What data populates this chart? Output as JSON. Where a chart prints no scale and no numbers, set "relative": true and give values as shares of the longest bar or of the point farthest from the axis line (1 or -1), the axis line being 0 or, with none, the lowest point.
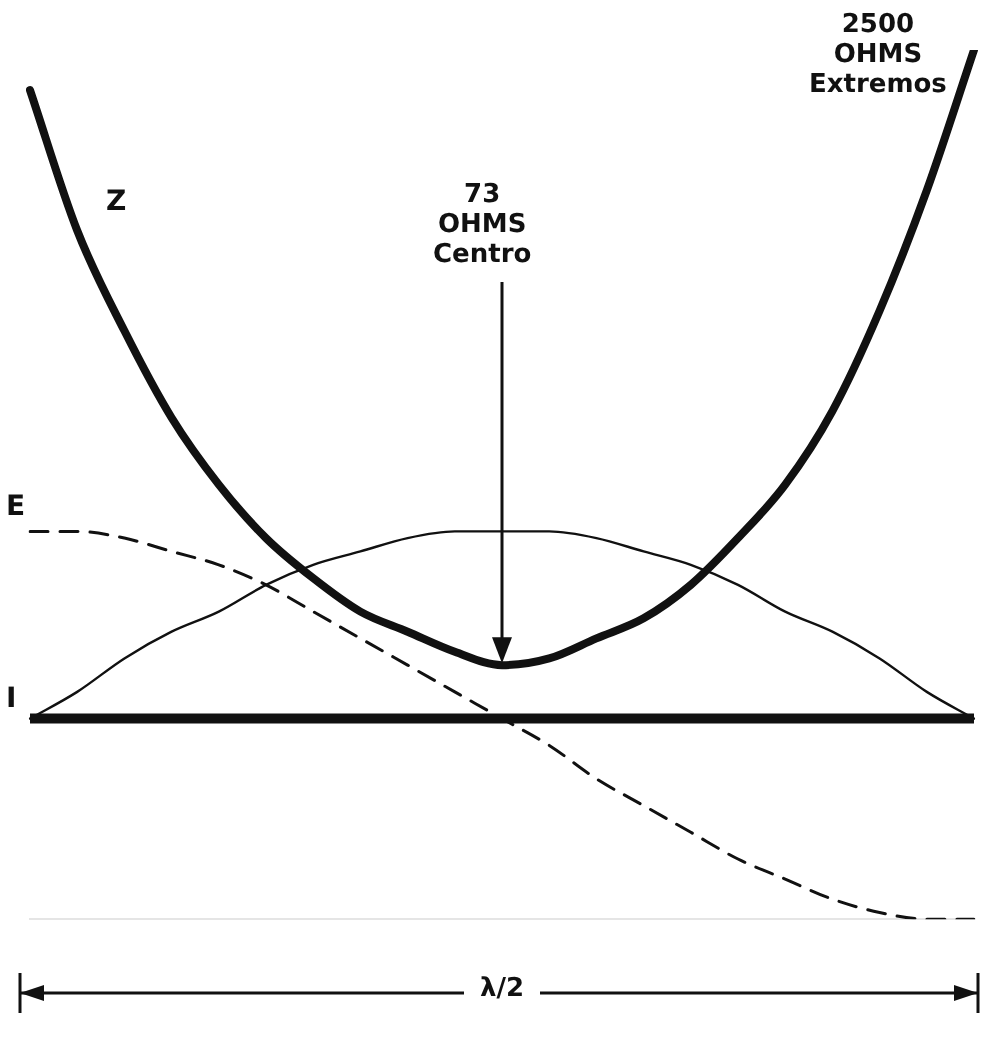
{
  "chart_data": {
    "type": "line",
    "relative": true,
    "legend": false,
    "marker": "none",
    "categories": [
      null,
      null,
      null,
      null,
      null,
      null,
      null,
      null,
      null,
      null,
      null,
      null,
      null,
      null,
      null,
      null,
      null,
      null,
      null,
      null,
      null
    ],
    "series": [
      {
        "name": "Z",
        "color": "#111111",
        "line_style": "solid",
        "values": [
          0.94,
          0.73,
          0.58,
          0.45,
          0.35,
          0.27,
          0.21,
          0.16,
          0.13,
          0.1,
          0.08,
          0.09,
          0.12,
          0.15,
          0.2,
          0.27,
          0.35,
          0.46,
          0.61,
          0.79,
          1
        ]
      },
      {
        "name": "E",
        "color": "#111111",
        "line_style": "dashed",
        "values": [
          0.28,
          0.28,
          0.27,
          0.25,
          0.23,
          0.2,
          0.16,
          0.12,
          0.08,
          0.04,
          0,
          -0.04,
          -0.09,
          -0.13,
          -0.17,
          -0.21,
          -0.24,
          -0.27,
          -0.29,
          -0.3,
          -0.3
        ]
      },
      {
        "name": "I",
        "color": "#111111",
        "line_style": "solid",
        "values": [
          0,
          0.04,
          0.09,
          0.13,
          0.16,
          0.2,
          0.23,
          0.25,
          0.27,
          0.28,
          0.28,
          0.28,
          0.27,
          0.25,
          0.23,
          0.2,
          0.16,
          0.13,
          0.09,
          0.04,
          0
        ]
      }
    ],
    "annotations": [
      "73\nOHMS\nCentro",
      "2500\nOHMS\nExtremos",
      "λ/2"
    ]
  }
}
